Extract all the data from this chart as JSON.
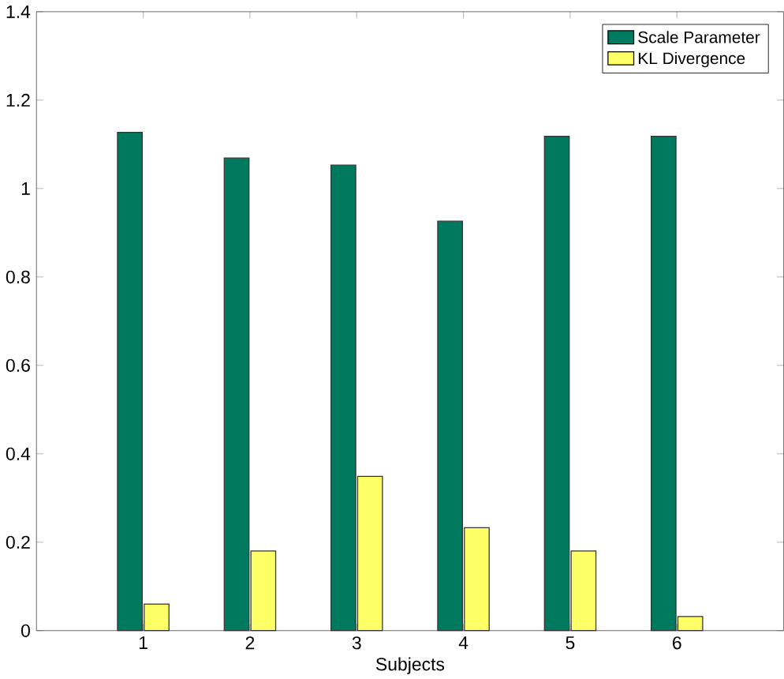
{
  "chart_data": {
    "type": "bar",
    "xlabel": "Subjects",
    "categories": [
      "1",
      "2",
      "3",
      "4",
      "5",
      "6"
    ],
    "series": [
      {
        "name": "Scale Parameter",
        "color": "#007a5e",
        "values": [
          1.127,
          1.069,
          1.053,
          0.926,
          1.118,
          1.118
        ]
      },
      {
        "name": "KL Divergence",
        "color": "#ffff66",
        "values": [
          0.06,
          0.18,
          0.349,
          0.233,
          0.18,
          0.032
        ]
      }
    ],
    "ylim": [
      0,
      1.4
    ],
    "yticks": [
      0,
      0.2,
      0.4,
      0.6,
      0.8,
      1,
      1.2,
      1.4
    ],
    "grid": false,
    "legend": "top right"
  }
}
